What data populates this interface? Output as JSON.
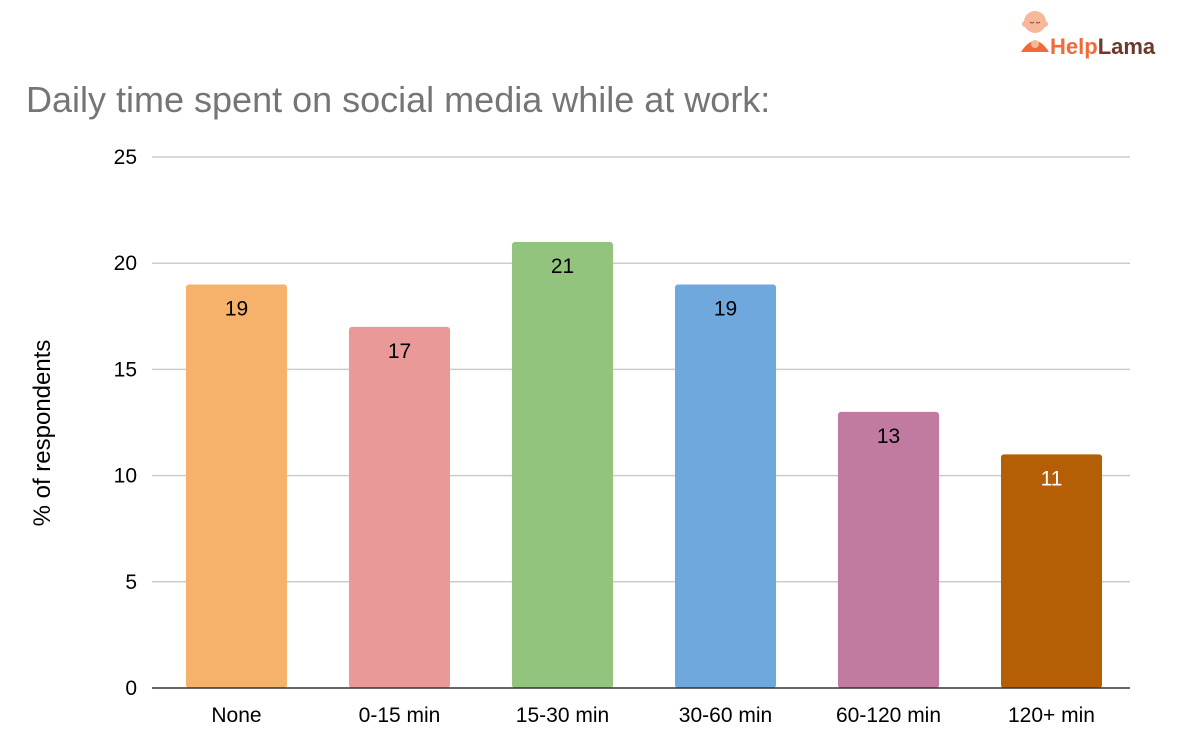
{
  "logo": {
    "text_help": "Help",
    "text_lama": "Lama",
    "help_color": "#f26a3a",
    "lama_color": "#6b3a2a",
    "icon": "monk-mascot-icon"
  },
  "chart_data": {
    "type": "bar",
    "title": "Daily time spent on social media while at work:",
    "xlabel": "",
    "ylabel": "% of respondents",
    "ylim": [
      0,
      25
    ],
    "yticks": [
      0,
      5,
      10,
      15,
      20,
      25
    ],
    "grid": true,
    "legend": "none",
    "categories": [
      "None",
      "0-15 min",
      "15-30 min",
      "30-60 min",
      "60-120 min",
      "120+ min"
    ],
    "values": [
      19,
      17,
      21,
      19,
      13,
      11
    ],
    "colors": [
      "#f6b26b",
      "#ea9999",
      "#93c47d",
      "#6fa8dc",
      "#c27ba0",
      "#b45f06"
    ],
    "label_colors": [
      "#000000",
      "#000000",
      "#000000",
      "#000000",
      "#000000",
      "#ffffff"
    ]
  }
}
